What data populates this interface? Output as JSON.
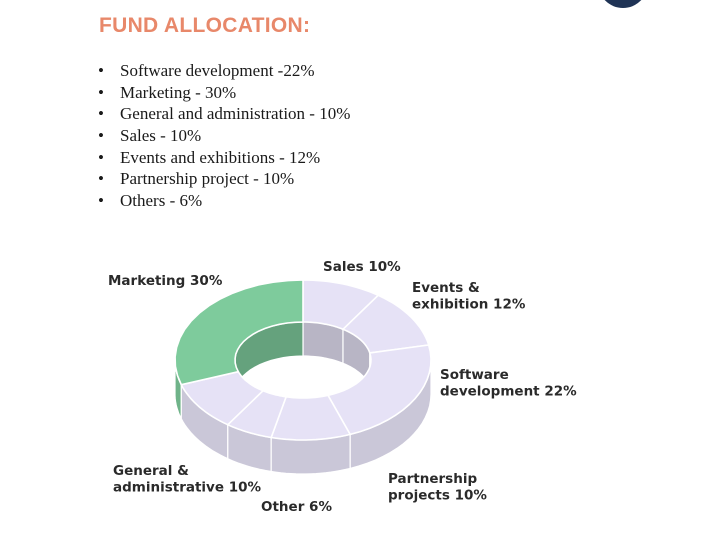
{
  "header": {
    "title": "FUND ALLOCATION:"
  },
  "allocation_list": [
    {
      "bullet": "•",
      "text": "Software development -22%"
    },
    {
      "bullet": "•",
      "text": "Marketing - 30%"
    },
    {
      "bullet": "•",
      "text": "General and administration - 10%"
    },
    {
      "bullet": "•",
      "text": "Sales - 10%"
    },
    {
      "bullet": "•",
      "text": "Events and exhibitions - 12%"
    },
    {
      "bullet": "•",
      "text": "Partnership project - 10%"
    },
    {
      "bullet": "•",
      "text": "Others - 6%"
    }
  ],
  "chart_data": {
    "type": "pie",
    "style": "3d-donut",
    "title": "",
    "slices": [
      {
        "name": "Sales",
        "value": 10,
        "label_lines": [
          "Sales 10%"
        ],
        "color": "#e6e2f6"
      },
      {
        "name": "Events & exhibition",
        "value": 12,
        "label_lines": [
          "Events &",
          "exhibition 12%"
        ],
        "color": "#e6e2f6"
      },
      {
        "name": "Software development",
        "value": 22,
        "label_lines": [
          "Software",
          "development 22%"
        ],
        "color": "#e6e2f6"
      },
      {
        "name": "Partnership projects",
        "value": 10,
        "label_lines": [
          "Partnership",
          "projects 10%"
        ],
        "color": "#e6e2f6"
      },
      {
        "name": "Other",
        "value": 6,
        "label_lines": [
          "Other 6%"
        ],
        "color": "#e6e2f6"
      },
      {
        "name": "General & administrative",
        "value": 10,
        "label_lines": [
          "General &",
          "administrative 10%"
        ],
        "color": "#e6e2f6"
      },
      {
        "name": "Marketing",
        "value": 30,
        "label_lines": [
          "Marketing 30%"
        ],
        "color": "#7ecb9c"
      }
    ],
    "colors": {
      "highlight": "#7ecb9c",
      "default": "#e6e2f6",
      "title": "#e8886a",
      "brand_dark": "#1f3355"
    }
  }
}
